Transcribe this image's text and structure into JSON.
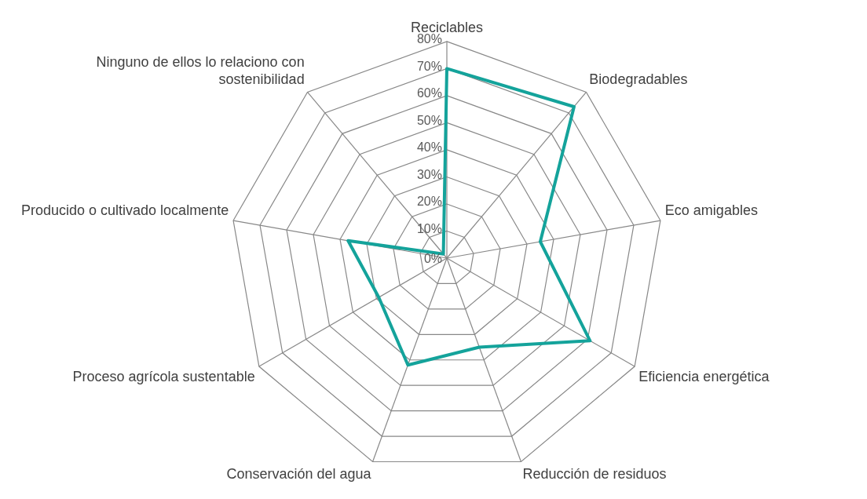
{
  "chart_data": {
    "type": "radar",
    "categories": [
      "Reciclables",
      "Biodegradables",
      "Eco amigables",
      "Eficiencia energética",
      "Reducción de residuos",
      "Conservación del agua",
      "Proceso agrícola sustentable",
      "Producido o cultivado localmente",
      "Ninguno de ellos lo relaciono con sostenibilidad"
    ],
    "series": [
      {
        "color": "#14a39b",
        "values": [
          70,
          73,
          35,
          61,
          35,
          42,
          29,
          37,
          2
        ]
      }
    ],
    "ylim": [
      0,
      80
    ],
    "yticks": [
      {
        "value": 0,
        "label": "0%"
      },
      {
        "value": 10,
        "label": "10%"
      },
      {
        "value": 20,
        "label": "20%"
      },
      {
        "value": 30,
        "label": "30%"
      },
      {
        "value": 40,
        "label": "40%"
      },
      {
        "value": 50,
        "label": "50%"
      },
      {
        "value": 60,
        "label": "60%"
      },
      {
        "value": 70,
        "label": "70%"
      },
      {
        "value": 80,
        "label": "80%"
      }
    ],
    "grid": true,
    "legend": false,
    "marker": "none"
  }
}
